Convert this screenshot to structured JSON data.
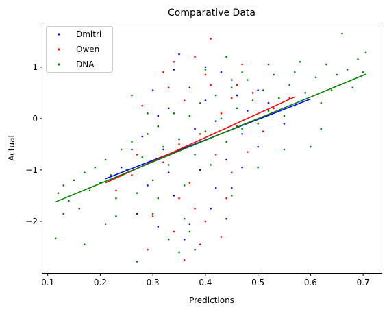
{
  "chart_data": {
    "type": "scatter",
    "title": "Comparative Data",
    "xlabel": "Predictions",
    "ylabel": "Actual",
    "xlim": [
      0.09,
      0.735
    ],
    "ylim": [
      -3.0,
      1.85
    ],
    "xticks": [
      0.1,
      0.2,
      0.3,
      0.4,
      0.5,
      0.6,
      0.7
    ],
    "xtick_labels": [
      "0.1",
      "0.2",
      "0.3",
      "0.4",
      "0.5",
      "0.6",
      "0.7"
    ],
    "yticks": [
      -2,
      -1,
      0,
      1
    ],
    "ytick_labels": [
      "−2",
      "−1",
      "0",
      "1"
    ],
    "grid": false,
    "legend_position": "top-left",
    "series": [
      {
        "name": "Dmitri",
        "color": "#0000ff",
        "marker": "dot",
        "fit": {
          "x": [
            0.21,
            0.6
          ],
          "y": [
            -1.17,
            0.38
          ]
        },
        "points": [
          [
            0.24,
            -0.95
          ],
          [
            0.27,
            -1.85
          ],
          [
            0.29,
            -1.3
          ],
          [
            0.3,
            0.55
          ],
          [
            0.31,
            -2.1
          ],
          [
            0.32,
            -0.6
          ],
          [
            0.33,
            0.2
          ],
          [
            0.34,
            -1.5
          ],
          [
            0.35,
            -0.4
          ],
          [
            0.36,
            -2.35
          ],
          [
            0.37,
            0.6
          ],
          [
            0.38,
            -0.2
          ],
          [
            0.39,
            -1.0
          ],
          [
            0.4,
            0.35
          ],
          [
            0.41,
            -1.75
          ],
          [
            0.42,
            -0.05
          ],
          [
            0.43,
            0.9
          ],
          [
            0.44,
            -0.8
          ],
          [
            0.45,
            -1.35
          ],
          [
            0.46,
            0.45
          ],
          [
            0.47,
            -0.3
          ],
          [
            0.48,
            0.15
          ],
          [
            0.5,
            -0.55
          ],
          [
            0.52,
            0.3
          ],
          [
            0.55,
            -0.1
          ],
          [
            0.28,
            -0.35
          ],
          [
            0.33,
            -1.05
          ],
          [
            0.37,
            -2.05
          ],
          [
            0.4,
            1.0
          ],
          [
            0.42,
            -1.35
          ],
          [
            0.35,
            1.25
          ],
          [
            0.31,
            0.05
          ],
          [
            0.26,
            -0.6
          ],
          [
            0.45,
            0.75
          ],
          [
            0.38,
            -2.55
          ],
          [
            0.44,
            -1.95
          ],
          [
            0.34,
            0.95
          ],
          [
            0.47,
            -0.95
          ],
          [
            0.5,
            0.55
          ]
        ]
      },
      {
        "name": "Owen",
        "color": "#ff0000",
        "marker": "dot",
        "fit": {
          "x": [
            0.21,
            0.57
          ],
          "y": [
            -1.25,
            0.42
          ]
        },
        "points": [
          [
            0.23,
            -1.4
          ],
          [
            0.26,
            -1.1
          ],
          [
            0.28,
            0.25
          ],
          [
            0.3,
            -1.9
          ],
          [
            0.31,
            -0.15
          ],
          [
            0.32,
            -0.85
          ],
          [
            0.33,
            0.6
          ],
          [
            0.34,
            -2.2
          ],
          [
            0.35,
            -0.5
          ],
          [
            0.36,
            0.35
          ],
          [
            0.37,
            -1.25
          ],
          [
            0.38,
            1.2
          ],
          [
            0.39,
            -0.3
          ],
          [
            0.4,
            -2.0
          ],
          [
            0.41,
            0.65
          ],
          [
            0.42,
            -0.7
          ],
          [
            0.43,
            0.1
          ],
          [
            0.44,
            -1.55
          ],
          [
            0.45,
            0.4
          ],
          [
            0.46,
            -0.15
          ],
          [
            0.47,
            1.05
          ],
          [
            0.48,
            -0.65
          ],
          [
            0.49,
            0.5
          ],
          [
            0.51,
            -0.25
          ],
          [
            0.53,
            0.2
          ],
          [
            0.56,
            0.4
          ],
          [
            0.29,
            -2.55
          ],
          [
            0.34,
            1.1
          ],
          [
            0.38,
            -1.75
          ],
          [
            0.41,
            1.55
          ],
          [
            0.43,
            -2.3
          ],
          [
            0.36,
            -2.75
          ],
          [
            0.32,
            0.9
          ],
          [
            0.27,
            -0.7
          ],
          [
            0.45,
            -1.05
          ],
          [
            0.4,
            0.85
          ],
          [
            0.35,
            -1.55
          ],
          [
            0.46,
            0.65
          ],
          [
            0.39,
            -2.45
          ]
        ]
      },
      {
        "name": "DNA",
        "color": "#008000",
        "marker": "dot",
        "fit": {
          "x": [
            0.115,
            0.705
          ],
          "y": [
            -1.62,
            0.86
          ]
        },
        "points": [
          [
            0.115,
            -2.33
          ],
          [
            0.12,
            -1.45
          ],
          [
            0.13,
            -1.3
          ],
          [
            0.14,
            -1.6
          ],
          [
            0.15,
            -1.2
          ],
          [
            0.16,
            -1.75
          ],
          [
            0.17,
            -1.05
          ],
          [
            0.18,
            -1.4
          ],
          [
            0.19,
            -0.95
          ],
          [
            0.2,
            -1.25
          ],
          [
            0.21,
            -0.8
          ],
          [
            0.22,
            -1.1
          ],
          [
            0.23,
            -1.55
          ],
          [
            0.24,
            -0.6
          ],
          [
            0.25,
            -1.0
          ],
          [
            0.26,
            -0.45
          ],
          [
            0.27,
            -2.78
          ],
          [
            0.28,
            -0.75
          ],
          [
            0.29,
            -0.3
          ],
          [
            0.3,
            -1.2
          ],
          [
            0.31,
            -0.15
          ],
          [
            0.32,
            -0.55
          ],
          [
            0.33,
            -0.9
          ],
          [
            0.34,
            0.1
          ],
          [
            0.35,
            -0.4
          ],
          [
            0.36,
            -1.3
          ],
          [
            0.37,
            0.05
          ],
          [
            0.38,
            -0.7
          ],
          [
            0.39,
            0.3
          ],
          [
            0.4,
            -0.25
          ],
          [
            0.41,
            -0.9
          ],
          [
            0.42,
            0.45
          ],
          [
            0.43,
            0.0
          ],
          [
            0.44,
            -0.45
          ],
          [
            0.45,
            0.6
          ],
          [
            0.46,
            0.2
          ],
          [
            0.47,
            -0.2
          ],
          [
            0.48,
            0.75
          ],
          [
            0.49,
            0.35
          ],
          [
            0.5,
            -0.1
          ],
          [
            0.51,
            0.55
          ],
          [
            0.52,
            0.15
          ],
          [
            0.53,
            0.85
          ],
          [
            0.54,
            0.4
          ],
          [
            0.55,
            0.05
          ],
          [
            0.56,
            0.65
          ],
          [
            0.57,
            0.25
          ],
          [
            0.58,
            1.1
          ],
          [
            0.59,
            0.5
          ],
          [
            0.6,
            -0.55
          ],
          [
            0.61,
            0.8
          ],
          [
            0.62,
            0.3
          ],
          [
            0.63,
            1.05
          ],
          [
            0.64,
            0.55
          ],
          [
            0.65,
            0.85
          ],
          [
            0.66,
            1.65
          ],
          [
            0.67,
            0.95
          ],
          [
            0.68,
            0.6
          ],
          [
            0.69,
            1.15
          ],
          [
            0.7,
            0.9
          ],
          [
            0.705,
            1.28
          ],
          [
            0.33,
            -2.35
          ],
          [
            0.35,
            -2.6
          ],
          [
            0.37,
            -2.2
          ],
          [
            0.3,
            -1.85
          ],
          [
            0.45,
            -1.5
          ],
          [
            0.5,
            -0.95
          ],
          [
            0.26,
            0.45
          ],
          [
            0.29,
            0.1
          ],
          [
            0.4,
            0.95
          ],
          [
            0.44,
            1.2
          ],
          [
            0.55,
            -0.6
          ],
          [
            0.62,
            -0.2
          ],
          [
            0.57,
            0.9
          ],
          [
            0.52,
            1.05
          ],
          [
            0.47,
            0.9
          ],
          [
            0.31,
            -1.55
          ],
          [
            0.36,
            -1.95
          ],
          [
            0.21,
            -2.05
          ],
          [
            0.17,
            -2.45
          ],
          [
            0.13,
            -1.85
          ],
          [
            0.23,
            -1.9
          ],
          [
            0.27,
            -1.45
          ]
        ]
      }
    ]
  }
}
